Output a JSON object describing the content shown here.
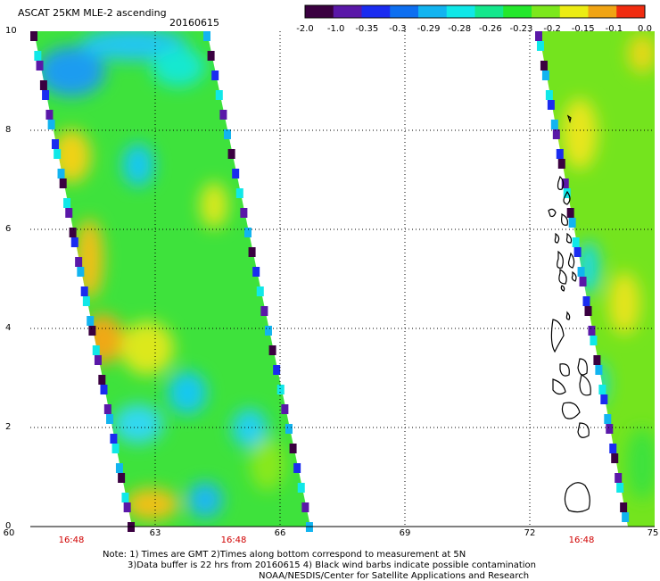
{
  "title": "ASCAT 25KM MLE-2 ascending",
  "date": "20160615",
  "colorbar": {
    "labels": [
      "-2.0",
      "-1.0",
      "-0.35",
      "-0.3",
      "-0.29",
      "-0.28",
      "-0.26",
      "-0.23",
      "-0.2",
      "-0.15",
      "-0.1",
      "0.0"
    ],
    "colors": [
      "#3a0040",
      "#5a18a8",
      "#1a2cf0",
      "#0e6ff0",
      "#12b4f0",
      "#10e8e8",
      "#14e88c",
      "#24e82c",
      "#7ce81c",
      "#ecec14",
      "#f0a414",
      "#f02c10"
    ]
  },
  "axes": {
    "x_ticks": [
      "60",
      "63",
      "66",
      "69",
      "72",
      "75"
    ],
    "y_ticks": [
      "0",
      "2",
      "4",
      "6",
      "8",
      "10"
    ]
  },
  "time_labels": [
    "16:48",
    "16:48",
    "16:48"
  ],
  "notes": [
    "Note: 1) Times are GMT 2)Times along bottom correspond to measurement at 5N",
    "3)Data buffer is 22 hrs from 20160615 4) Black wind barbs indicate possible contamination",
    "NOAA/NESDIS/Center for Satellite Applications and Research"
  ],
  "colors": {
    "time_label": "#d00000",
    "grid": "#000000",
    "coastline": "#000000"
  }
}
